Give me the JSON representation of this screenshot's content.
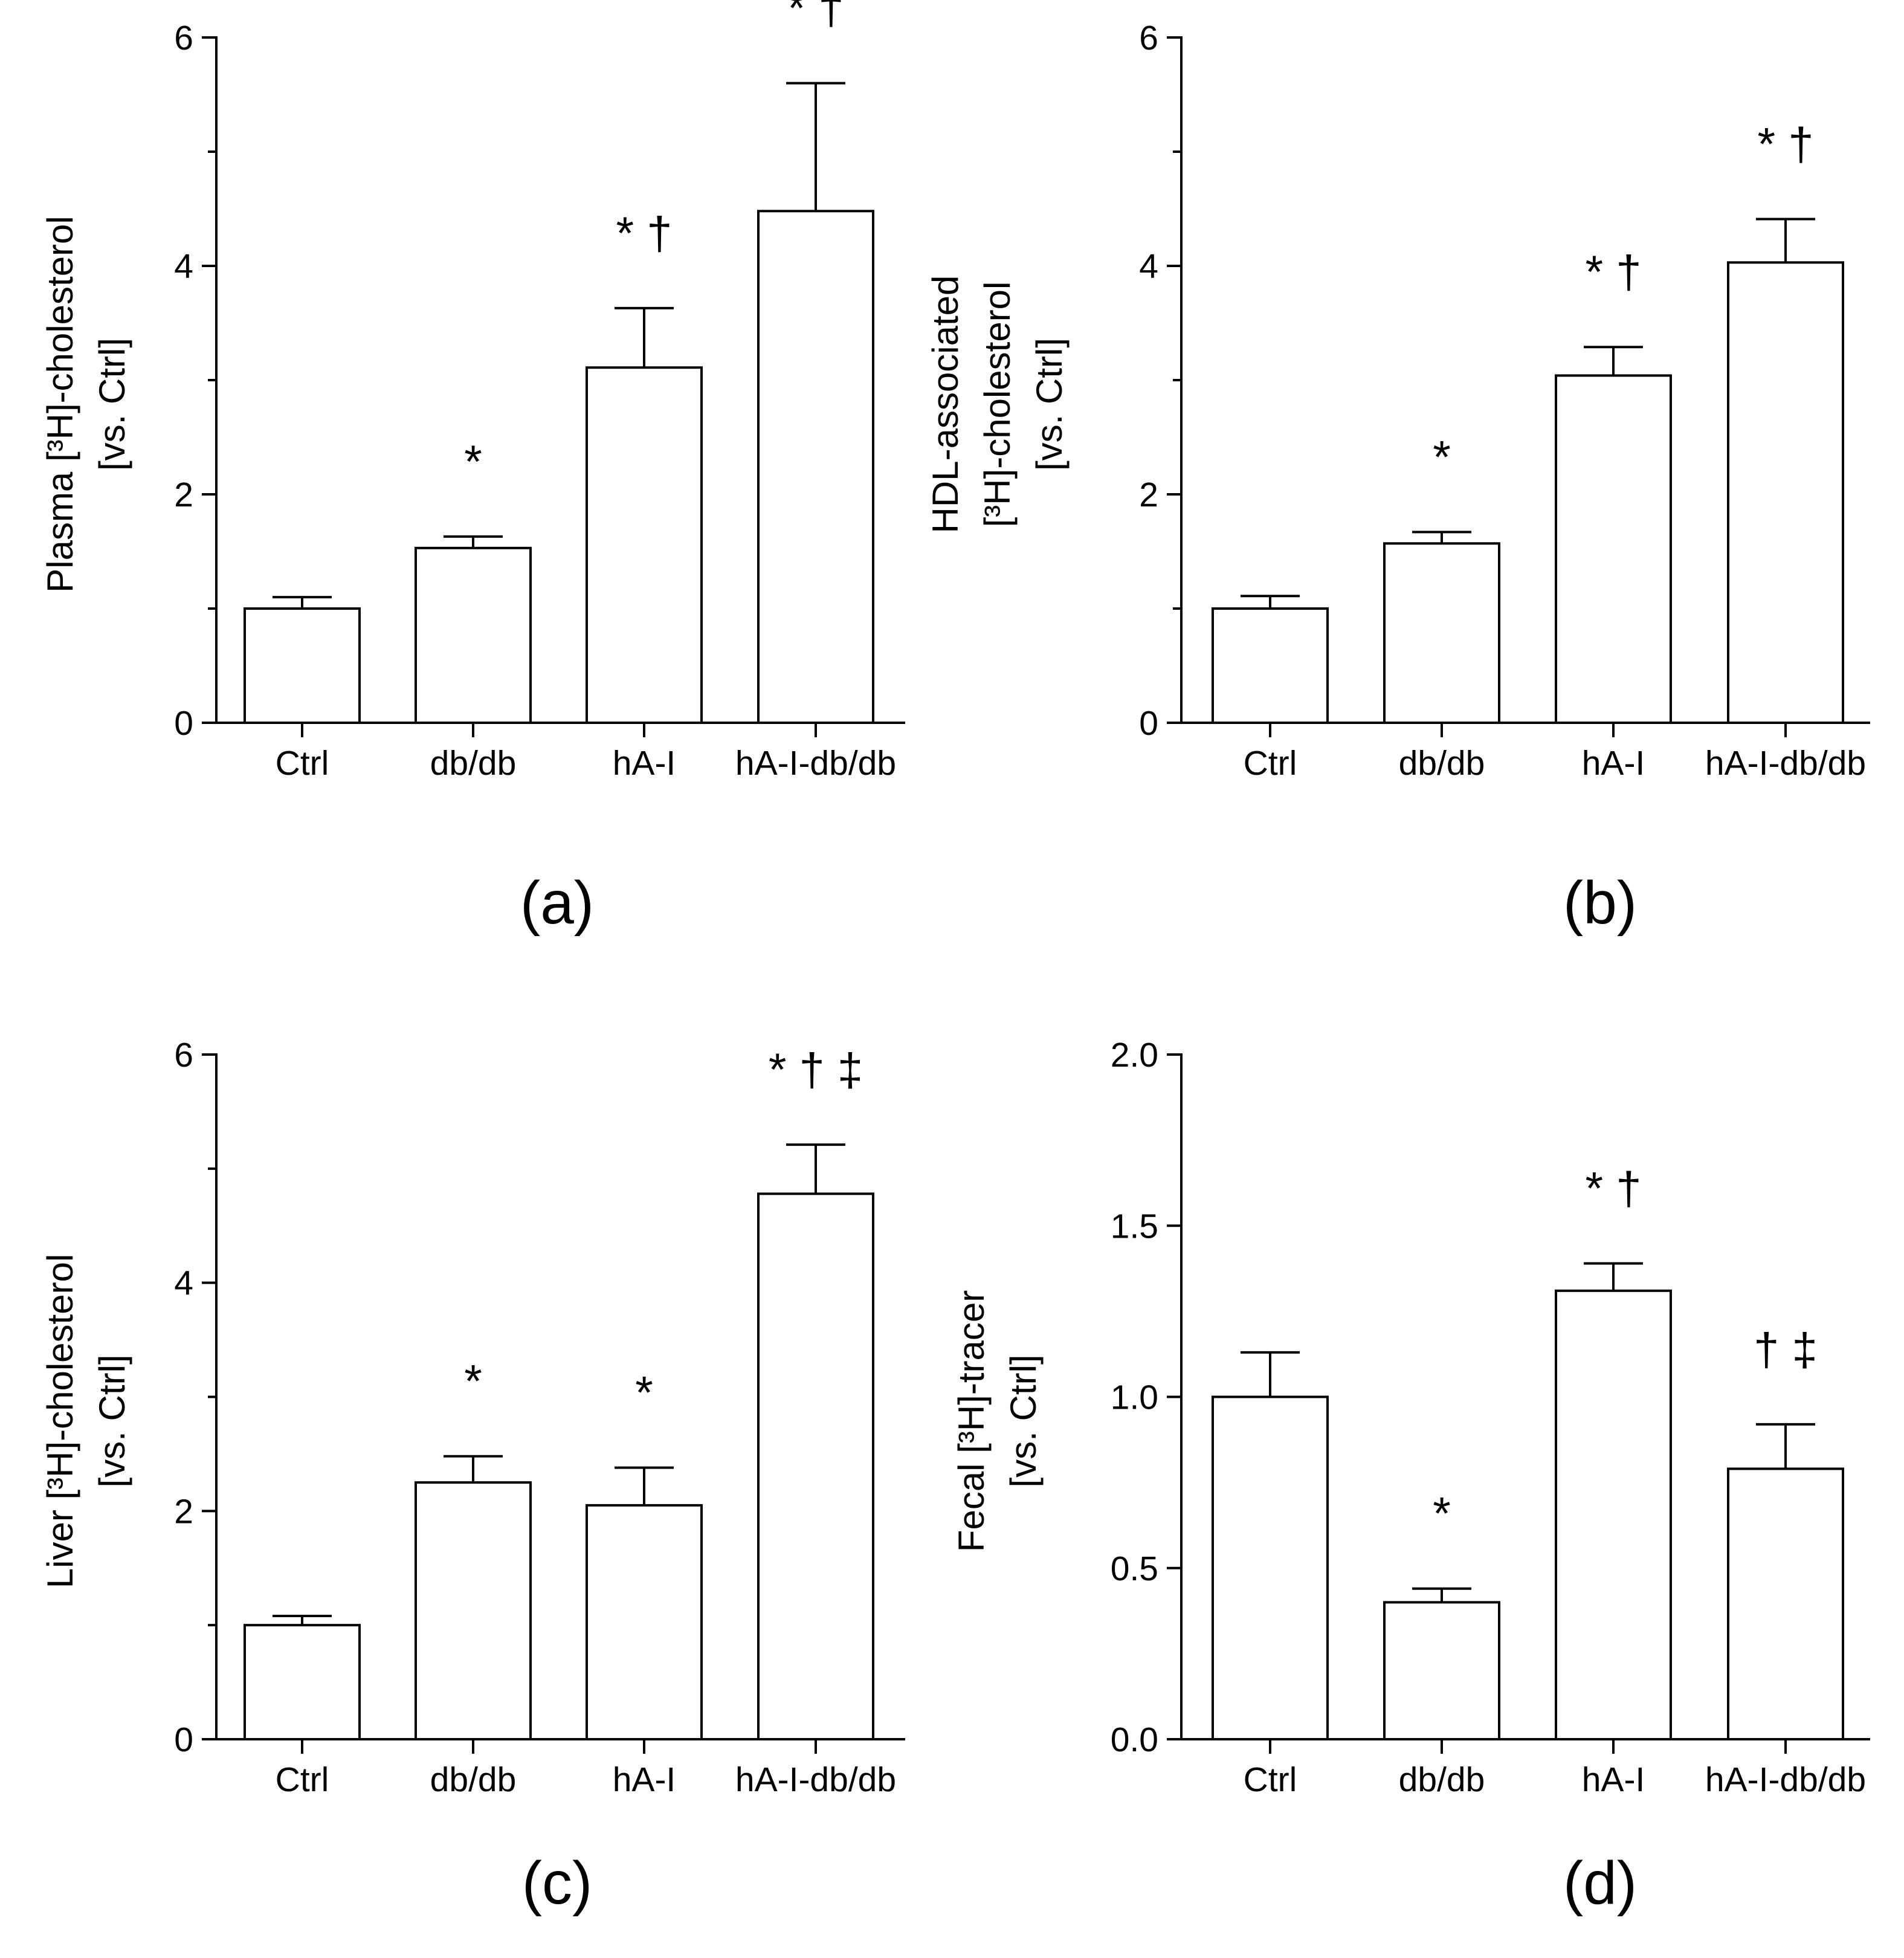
{
  "figure": {
    "colors": {
      "ink": "#000000",
      "bar_fill": "#ffffff",
      "background": "#ffffff"
    }
  },
  "chart_data": [
    {
      "type": "bar",
      "panel_label": "(a)",
      "title": "",
      "categories": [
        "Ctrl",
        "db/db",
        "hA-I",
        "hA-I-db/db"
      ],
      "values": [
        1.0,
        1.53,
        3.11,
        4.48
      ],
      "error": [
        0.1,
        0.1,
        0.52,
        1.12
      ],
      "annotations": [
        "",
        "*",
        "* †",
        "* †"
      ],
      "xlabel": "",
      "ylabel_lines": [
        "Plasma [³H]-cholesterol",
        "[vs. Ctrl]"
      ],
      "ylim": [
        0,
        6
      ],
      "yticks": [
        0,
        2,
        4,
        6
      ],
      "ytick_labels": [
        "0",
        "2",
        "4",
        "6"
      ],
      "minor_ticks": [
        1,
        3,
        5
      ]
    },
    {
      "type": "bar",
      "panel_label": "(b)",
      "title": "",
      "categories": [
        "Ctrl",
        "db/db",
        "hA-I",
        "hA-I-db/db"
      ],
      "values": [
        1.0,
        1.57,
        3.04,
        4.03
      ],
      "error": [
        0.11,
        0.1,
        0.25,
        0.38
      ],
      "annotations": [
        "",
        "*",
        "* †",
        "* †"
      ],
      "xlabel": "",
      "ylabel_lines": [
        "HDL-associated",
        "[³H]-cholesterol",
        "[vs. Ctrl]"
      ],
      "ylim": [
        0,
        6
      ],
      "yticks": [
        0,
        2,
        4,
        6
      ],
      "ytick_labels": [
        "0",
        "2",
        "4",
        "6"
      ],
      "minor_ticks": [
        1,
        3,
        5
      ]
    },
    {
      "type": "bar",
      "panel_label": "(c)",
      "title": "",
      "categories": [
        "Ctrl",
        "db/db",
        "hA-I",
        "hA-I-db/db"
      ],
      "values": [
        1.0,
        2.25,
        2.05,
        4.78
      ],
      "error": [
        0.08,
        0.23,
        0.33,
        0.43
      ],
      "annotations": [
        "",
        "*",
        "*",
        "* † ‡"
      ],
      "xlabel": "",
      "ylabel_lines": [
        "Liver [³H]-cholesterol",
        "[vs. Ctrl]"
      ],
      "ylim": [
        0,
        6
      ],
      "yticks": [
        0,
        2,
        4,
        6
      ],
      "ytick_labels": [
        "0",
        "2",
        "4",
        "6"
      ],
      "minor_ticks": [
        1,
        3,
        5
      ]
    },
    {
      "type": "bar",
      "panel_label": "(d)",
      "title": "",
      "categories": [
        "Ctrl",
        "db/db",
        "hA-I",
        "hA-I-db/db"
      ],
      "values": [
        1.0,
        0.4,
        1.31,
        0.79
      ],
      "error": [
        0.13,
        0.04,
        0.08,
        0.13
      ],
      "annotations": [
        "",
        "*",
        "* †",
        "† ‡"
      ],
      "xlabel": "",
      "ylabel_lines": [
        "Fecal [³H]-tracer",
        "[vs. Ctrl]"
      ],
      "ylim": [
        0,
        2
      ],
      "yticks": [
        0,
        0.5,
        1.0,
        1.5,
        2.0
      ],
      "ytick_labels": [
        "0.0",
        "0.5",
        "1.0",
        "1.5",
        "2.0"
      ],
      "minor_ticks": []
    }
  ]
}
